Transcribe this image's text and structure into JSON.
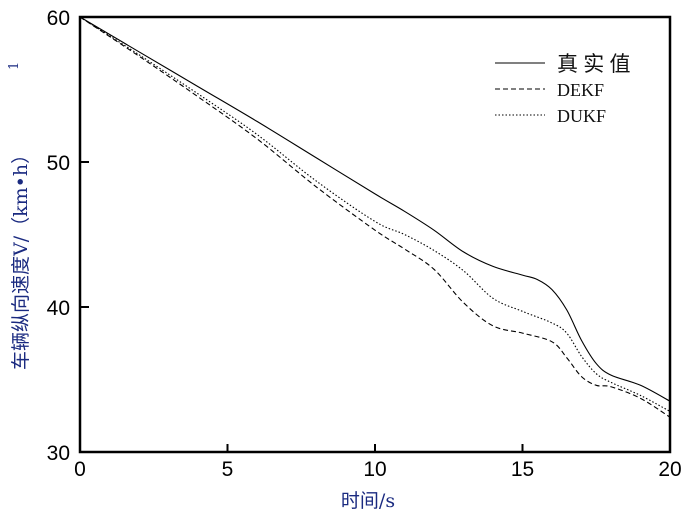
{
  "chart_data": {
    "type": "line",
    "xlabel": "时间/s",
    "ylabel": "车辆纵向速度V/（km•h）",
    "ylabel_sup": "1",
    "xlim": [
      0,
      20
    ],
    "ylim": [
      30,
      60
    ],
    "xticks": [
      "0",
      "5",
      "10",
      "15",
      "20"
    ],
    "yticks": [
      "30",
      "40",
      "50",
      "60"
    ],
    "grid": false,
    "legend_position": "top-right",
    "series": [
      {
        "name": "真 实 值",
        "style": "solid",
        "x": [
          0,
          2,
          4,
          6,
          8,
          10,
          11,
          12,
          13,
          14,
          15,
          15.5,
          16,
          16.5,
          17,
          17.5,
          18,
          19,
          20
        ],
        "y": [
          60,
          57.6,
          55.2,
          52.8,
          50.3,
          47.8,
          46.6,
          45.3,
          43.8,
          42.8,
          42.2,
          41.9,
          41.2,
          39.8,
          37.7,
          36.1,
          35.3,
          34.6,
          33.5
        ]
      },
      {
        "name": "DEKF",
        "style": "dashed",
        "x": [
          0,
          2,
          4,
          6,
          8,
          10,
          11,
          12,
          13,
          14,
          15,
          16,
          16.5,
          17,
          17.5,
          18,
          19,
          20
        ],
        "y": [
          60,
          57.3,
          54.5,
          51.6,
          48.3,
          45.3,
          44.0,
          42.6,
          40.3,
          38.7,
          38.2,
          37.6,
          36.5,
          35.2,
          34.6,
          34.5,
          33.7,
          32.4
        ]
      },
      {
        "name": "DUKF",
        "style": "dotted",
        "x": [
          0,
          2,
          4,
          6,
          8,
          10,
          11,
          12,
          13,
          14,
          15,
          16,
          16.5,
          17,
          17.5,
          18,
          19,
          20
        ],
        "y": [
          60,
          57.4,
          54.7,
          51.9,
          48.7,
          45.9,
          45.0,
          43.9,
          42.5,
          40.6,
          39.7,
          38.9,
          38.2,
          36.6,
          35.4,
          34.8,
          33.9,
          32.8
        ]
      }
    ]
  }
}
